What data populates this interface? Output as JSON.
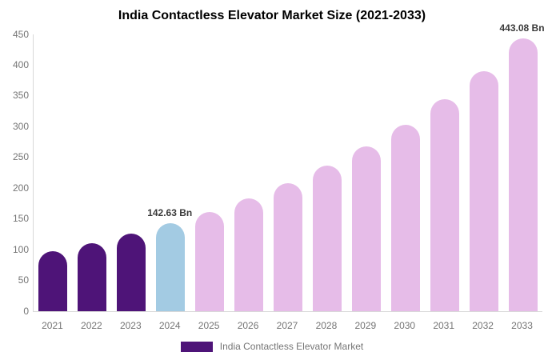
{
  "chart_data": {
    "type": "bar",
    "title": "India Contactless Elevator Market Size (2021-2033)",
    "xlabel": "",
    "ylabel": "",
    "categories": [
      "2021",
      "2022",
      "2023",
      "2024",
      "2025",
      "2026",
      "2027",
      "2028",
      "2029",
      "2030",
      "2031",
      "2032",
      "2033"
    ],
    "series": [
      {
        "name": "India Contactless Elevator Market",
        "values": [
          97.7,
          110.8,
          125.7,
          142.63,
          161.8,
          183.5,
          208.1,
          236.1,
          267.8,
          303.7,
          344.5,
          390.7,
          443.08
        ]
      }
    ],
    "unit": "Bn",
    "ylim": [
      0,
      450
    ],
    "yticks": [
      0,
      50,
      100,
      150,
      200,
      250,
      300,
      350,
      400,
      450
    ],
    "grid": false,
    "legend_position": "bottom",
    "bar_roles": [
      "historical",
      "historical",
      "historical",
      "base_year",
      "forecast",
      "forecast",
      "forecast",
      "forecast",
      "forecast",
      "forecast",
      "forecast",
      "forecast",
      "forecast"
    ],
    "colors": {
      "historical": "#4e1478",
      "base_year": "#a3cbe3",
      "forecast": "#e6bce8",
      "axis_line": "#d9d9d9",
      "tick_text": "#757575",
      "title_text": "#000000",
      "annotation_text": "#3a3a3a",
      "legend_swatch": "#4e1478"
    },
    "annotations": [
      {
        "category": "2024",
        "text": "142.63 Bn"
      },
      {
        "category": "2033",
        "text": "443.08 Bn"
      }
    ]
  },
  "legend": {
    "label": "India Contactless Elevator Market"
  }
}
